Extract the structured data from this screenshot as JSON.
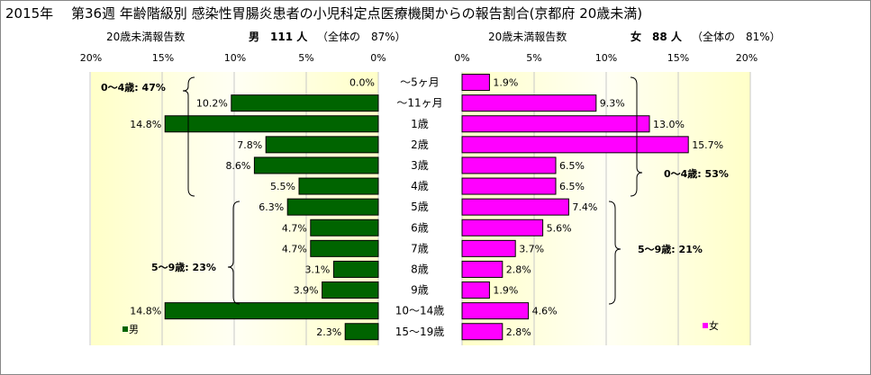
{
  "title": "2015年　 第36週 年齢階級別 感染性胃腸炎患者の小児科定点医療機関からの報告割合(京都府 20歳未満)",
  "colors": {
    "male": "#006400",
    "female": "#ff00ff",
    "plot_bg_edge": "#ffffc0",
    "plot_bg_center": "#fffff0"
  },
  "chart_data": [
    {
      "type": "bar",
      "orientation": "horizontal",
      "direction": "right-to-left",
      "subtitle_left": "20歳未満報告数",
      "subtitle_right": "男　111 人",
      "subtitle_pct": "（全体の　87%）",
      "xlim": [
        0,
        20
      ],
      "xticks": [
        "20%",
        "15%",
        "10%",
        "5%",
        "0%"
      ],
      "categories": [
        "～5ヶ月",
        "～11ヶ月",
        "1歳",
        "2歳",
        "3歳",
        "4歳",
        "5歳",
        "6歳",
        "7歳",
        "8歳",
        "9歳",
        "10～14歳",
        "15～19歳"
      ],
      "values": [
        0.0,
        10.2,
        14.8,
        7.8,
        8.6,
        5.5,
        6.3,
        4.7,
        4.7,
        3.1,
        3.9,
        14.8,
        2.3
      ],
      "value_labels": [
        "0.0%",
        "10.2%",
        "14.8%",
        "7.8%",
        "8.6%",
        "5.5%",
        "6.3%",
        "4.7%",
        "4.7%",
        "3.1%",
        "3.9%",
        "14.8%",
        "2.3%"
      ],
      "legend": "男",
      "annotations": [
        "0～4歳: 47%",
        "5～9歳: 23%"
      ]
    },
    {
      "type": "bar",
      "orientation": "horizontal",
      "direction": "left-to-right",
      "subtitle_left": "20歳未満報告数",
      "subtitle_right": "女　88 人",
      "subtitle_pct": "（全体の　81%）",
      "xlim": [
        0,
        20
      ],
      "xticks": [
        "0%",
        "5%",
        "10%",
        "15%",
        "20%"
      ],
      "categories": [
        "～5ヶ月",
        "～11ヶ月",
        "1歳",
        "2歳",
        "3歳",
        "4歳",
        "5歳",
        "6歳",
        "7歳",
        "8歳",
        "9歳",
        "10～14歳",
        "15～19歳"
      ],
      "values": [
        1.9,
        9.3,
        13.0,
        15.7,
        6.5,
        6.5,
        7.4,
        5.6,
        3.7,
        2.8,
        1.9,
        4.6,
        2.8
      ],
      "value_labels": [
        "1.9%",
        "9.3%",
        "13.0%",
        "15.7%",
        "6.5%",
        "6.5%",
        "7.4%",
        "5.6%",
        "3.7%",
        "2.8%",
        "1.9%",
        "4.6%",
        "2.8%"
      ],
      "legend": "女",
      "annotations": [
        "0～4歳: 53%",
        "5～9歳: 21%"
      ]
    }
  ]
}
